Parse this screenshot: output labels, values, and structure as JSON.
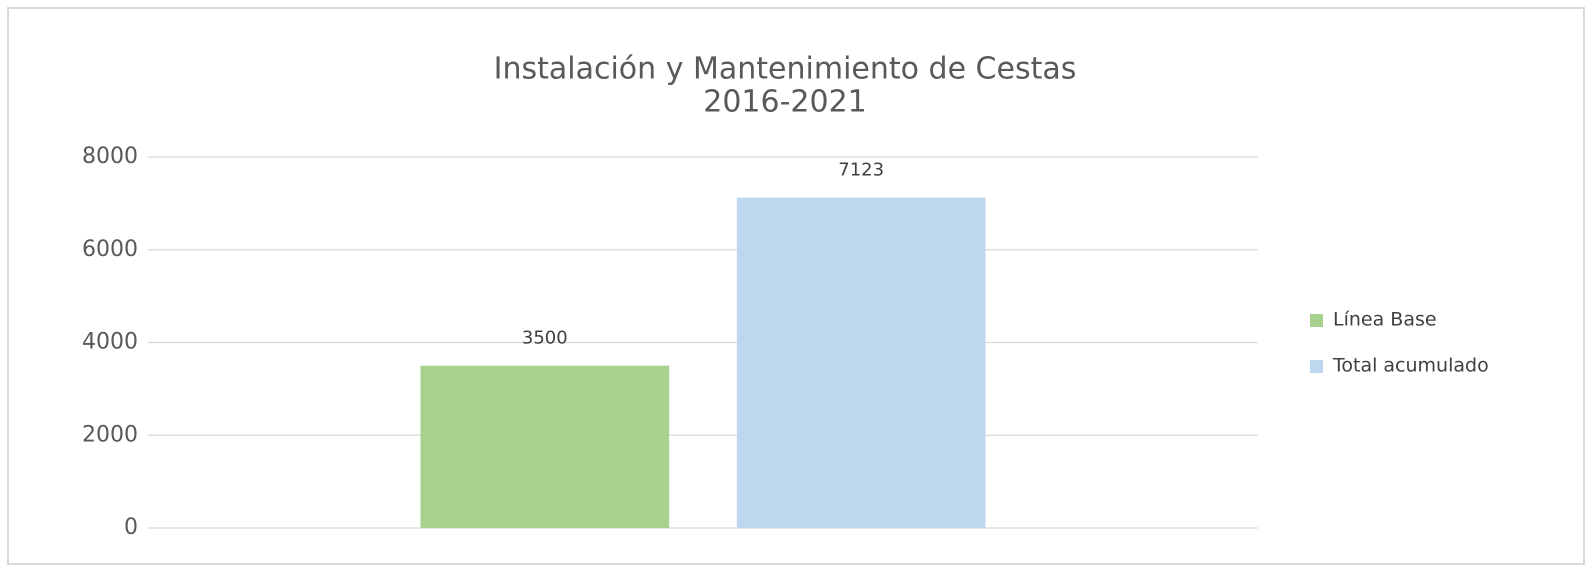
{
  "chart_data": {
    "type": "bar",
    "title": "Instalación y Mantenimiento de Cestas",
    "subtitle": "2016-2021",
    "categories": [
      null
    ],
    "series": [
      {
        "name": "Línea Base",
        "color": "#a9d18e",
        "values": [
          3500
        ]
      },
      {
        "name": "Total acumulado",
        "color": "#bdd7ee",
        "values": [
          7123
        ]
      }
    ],
    "ylim": [
      0,
      8000
    ],
    "yticks": [
      0,
      2000,
      4000,
      6000,
      8000
    ],
    "grid": true,
    "legend": "right",
    "data_labels": true
  }
}
